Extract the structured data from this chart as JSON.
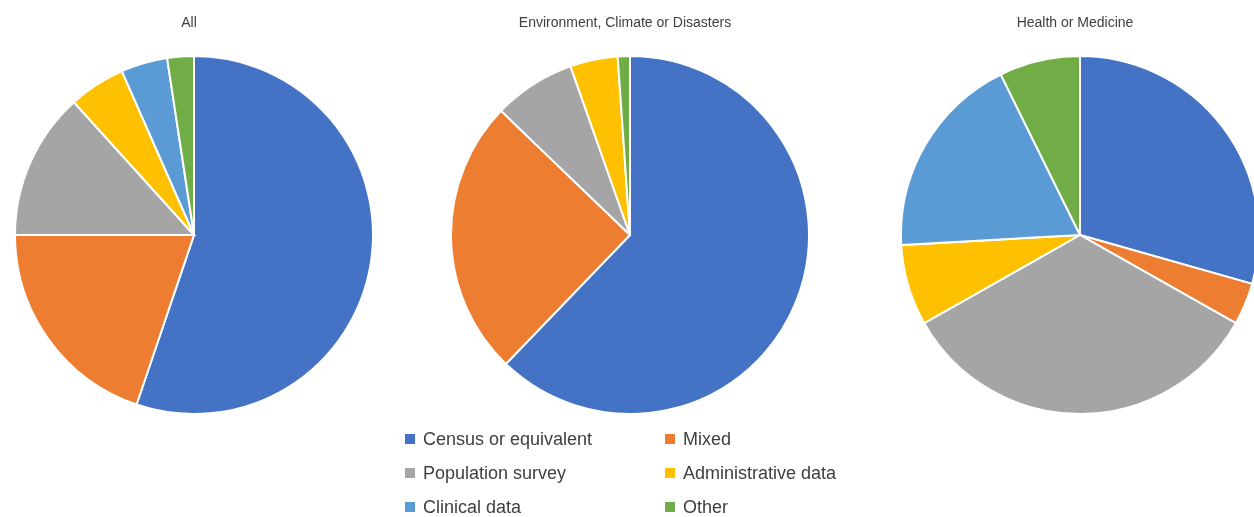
{
  "chart_data": [
    {
      "type": "pie",
      "title": "All",
      "categories": [
        "Census or equivalent",
        "Mixed",
        "Population survey",
        "Administrative data",
        "Clinical data",
        "Other"
      ],
      "values": [
        55.2,
        19.8,
        13.3,
        5.1,
        4.2,
        2.4
      ],
      "colors": [
        "#4472c4",
        "#ed7d31",
        "#a5a5a5",
        "#ffc000",
        "#5b9bd5",
        "#70ad47"
      ],
      "legend": "bottom"
    },
    {
      "type": "pie",
      "title": "Environment, Climate or Disasters",
      "categories": [
        null,
        null,
        null,
        null,
        null
      ],
      "values": [
        62.2,
        25,
        7.4,
        4.3,
        1.1
      ],
      "colors": [
        "#4472c4",
        "#ed7d31",
        "#a5a5a5",
        "#ffc000",
        "#70ad47"
      ]
    },
    {
      "type": "pie",
      "title": "Health or Medicine",
      "categories": [
        null,
        null,
        null,
        null,
        null,
        null
      ],
      "values": [
        29.4,
        3.8,
        33.6,
        7.3,
        18.6,
        7.3
      ],
      "colors": [
        "#4472c4",
        "#ed7d31",
        "#a5a5a5",
        "#ffc000",
        "#5b9bd5",
        "#70ad47"
      ]
    }
  ]
}
